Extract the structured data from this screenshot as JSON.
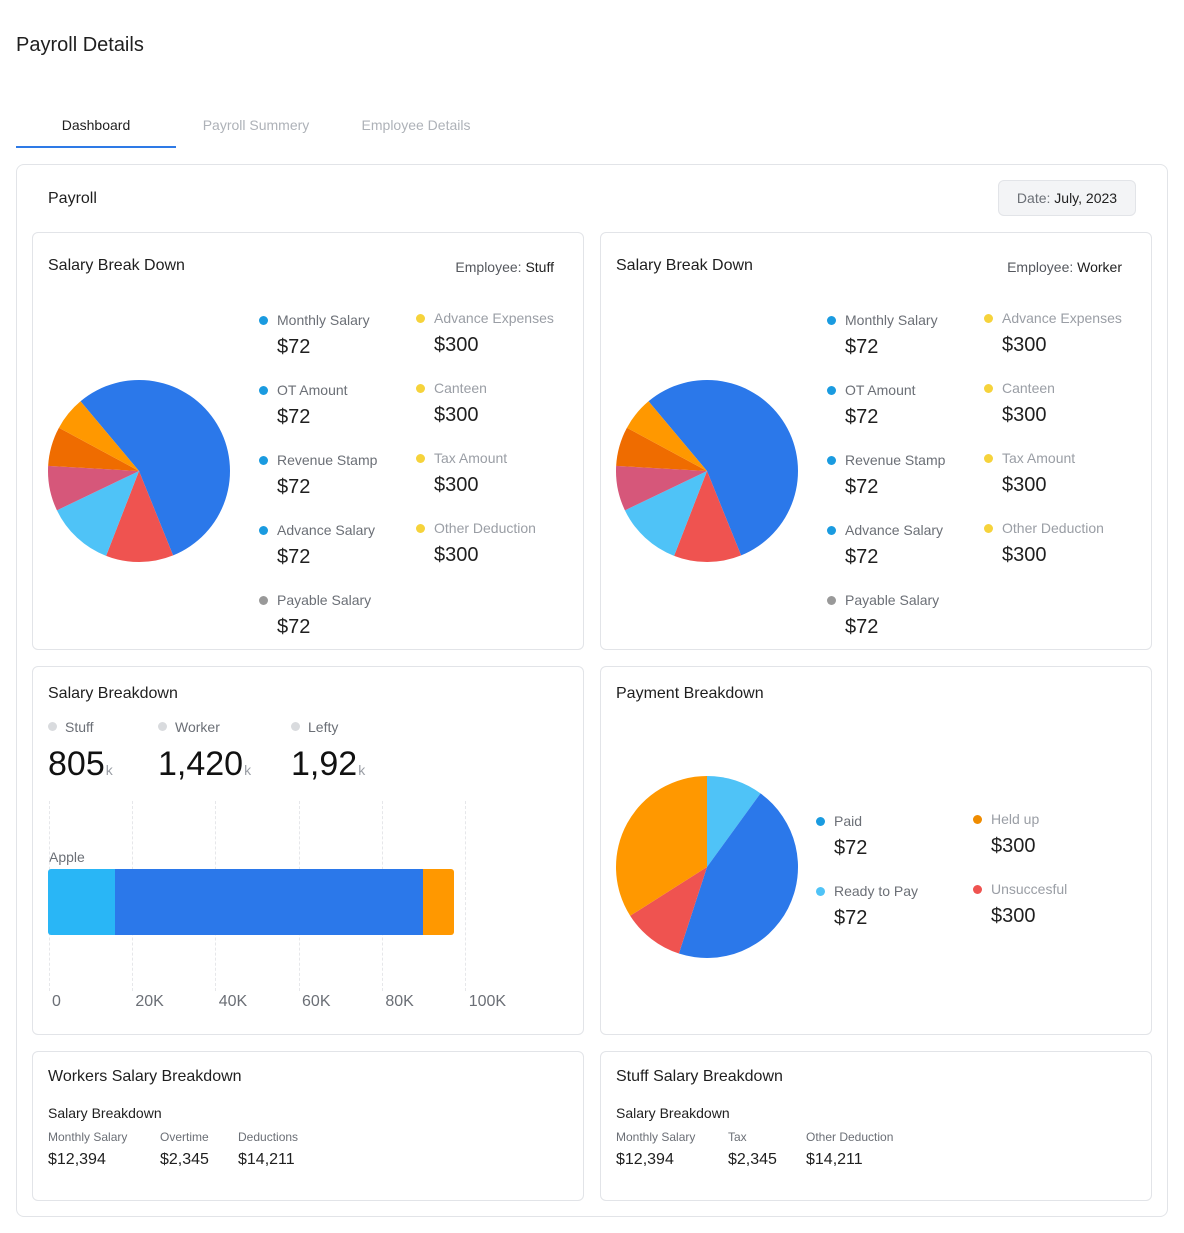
{
  "page": {
    "title": "Payroll Details"
  },
  "tabs": [
    {
      "label": "Dashboard",
      "active": true
    },
    {
      "label": "Payroll Summery",
      "active": false
    },
    {
      "label": "Employee Details",
      "active": false
    }
  ],
  "payroll": {
    "title": "Payroll",
    "date_label": "Date:",
    "date_value": "July, 2023"
  },
  "colors": {
    "blue_dot": "#1a9be0",
    "yellow_dot": "#f6d33b",
    "gray_dot": "#999999",
    "pie_blue": "#2b78ea",
    "pie_red": "#ef5350",
    "pie_lightblue": "#4fc3f7",
    "pie_pink": "#d6577a",
    "pie_darkorange": "#ef6c00",
    "pie_orange": "#ff9800"
  },
  "salary_cards": [
    {
      "title": "Salary Break Down",
      "employee_label": "Employee:",
      "employee_value": "Stuff",
      "left_items": [
        {
          "name": "Monthly Salary",
          "value": "$72"
        },
        {
          "name": "OT Amount",
          "value": "$72"
        },
        {
          "name": "Revenue Stamp",
          "value": "$72"
        },
        {
          "name": "Advance Salary",
          "value": "$72"
        },
        {
          "name": "Payable Salary",
          "value": "$72"
        }
      ],
      "right_items": [
        {
          "name": "Advance Expenses",
          "value": "$300"
        },
        {
          "name": "Canteen",
          "value": "$300"
        },
        {
          "name": "Tax Amount",
          "value": "$300"
        },
        {
          "name": "Other Deduction",
          "value": "$300"
        }
      ]
    },
    {
      "title": "Salary Break Down",
      "employee_label": "Employee:",
      "employee_value": "Worker",
      "left_items": [
        {
          "name": "Monthly Salary",
          "value": "$72"
        },
        {
          "name": "OT Amount",
          "value": "$72"
        },
        {
          "name": "Revenue Stamp",
          "value": "$72"
        },
        {
          "name": "Advance Salary",
          "value": "$72"
        },
        {
          "name": "Payable Salary",
          "value": "$72"
        }
      ],
      "right_items": [
        {
          "name": "Advance Expenses",
          "value": "$300"
        },
        {
          "name": "Canteen",
          "value": "$300"
        },
        {
          "name": "Tax Amount",
          "value": "$300"
        },
        {
          "name": "Other Deduction",
          "value": "$300"
        }
      ]
    }
  ],
  "salary_breakdown": {
    "title": "Salary Breakdown",
    "stats": [
      {
        "label": "Stuff",
        "value": "805",
        "unit": "k"
      },
      {
        "label": "Worker",
        "value": "1,420",
        "unit": "k"
      },
      {
        "label": "Lefty",
        "value": "1,92",
        "unit": "k"
      }
    ]
  },
  "payment_breakdown": {
    "title": "Payment Breakdown",
    "items": [
      {
        "name": "Paid",
        "value": "$72"
      },
      {
        "name": "Ready to Pay",
        "value": "$72"
      },
      {
        "name": "Held up",
        "value": "$300"
      },
      {
        "name": "Unsuccesful",
        "value": "$300"
      }
    ]
  },
  "workers_salary": {
    "title": "Workers Salary Breakdown",
    "subtitle": "Salary Breakdown",
    "columns": [
      {
        "label": "Monthly Salary",
        "value": "$12,394"
      },
      {
        "label": "Overtime",
        "value": "$2,345"
      },
      {
        "label": "Deductions",
        "value": "$14,211"
      }
    ]
  },
  "stuff_salary": {
    "title": "Stuff Salary Breakdown",
    "subtitle": "Salary Breakdown",
    "columns": [
      {
        "label": "Monthly Salary",
        "value": "$12,394"
      },
      {
        "label": "Tax",
        "value": "$2,345"
      },
      {
        "label": "Other Deduction",
        "value": "$14,211"
      }
    ]
  },
  "chart_data": [
    {
      "type": "pie",
      "title": "Salary Break Down (Stuff)",
      "labels": [
        "Blue",
        "Red",
        "Light Blue",
        "Pink",
        "Dark Orange",
        "Orange"
      ],
      "values": [
        55,
        12,
        12,
        8,
        7,
        6
      ]
    },
    {
      "type": "pie",
      "title": "Salary Break Down (Worker)",
      "labels": [
        "Blue",
        "Red",
        "Light Blue",
        "Pink",
        "Dark Orange",
        "Orange"
      ],
      "values": [
        55,
        12,
        12,
        8,
        7,
        6
      ]
    },
    {
      "type": "bar",
      "orientation": "horizontal",
      "stacked": true,
      "title": "Salary Breakdown",
      "categories": [
        "Apple"
      ],
      "series": [
        {
          "name": "Segment 1",
          "color": "#29b6f6",
          "values": [
            16000
          ]
        },
        {
          "name": "Segment 2",
          "color": "#2b78ea",
          "values": [
            74000
          ]
        },
        {
          "name": "Segment 3",
          "color": "#ff9800",
          "values": [
            7500
          ]
        }
      ],
      "xlim": [
        0,
        110000
      ],
      "xticks": [
        {
          "value": 0,
          "label": "0"
        },
        {
          "value": 20000,
          "label": "20K"
        },
        {
          "value": 40000,
          "label": "40K"
        },
        {
          "value": 60000,
          "label": "60K"
        },
        {
          "value": 80000,
          "label": "80K"
        },
        {
          "value": 100000,
          "label": "100K"
        }
      ]
    },
    {
      "type": "pie",
      "title": "Payment Breakdown",
      "labels": [
        "Light Blue",
        "Blue",
        "Red",
        "Orange"
      ],
      "values": [
        10,
        45,
        11,
        34
      ]
    }
  ]
}
